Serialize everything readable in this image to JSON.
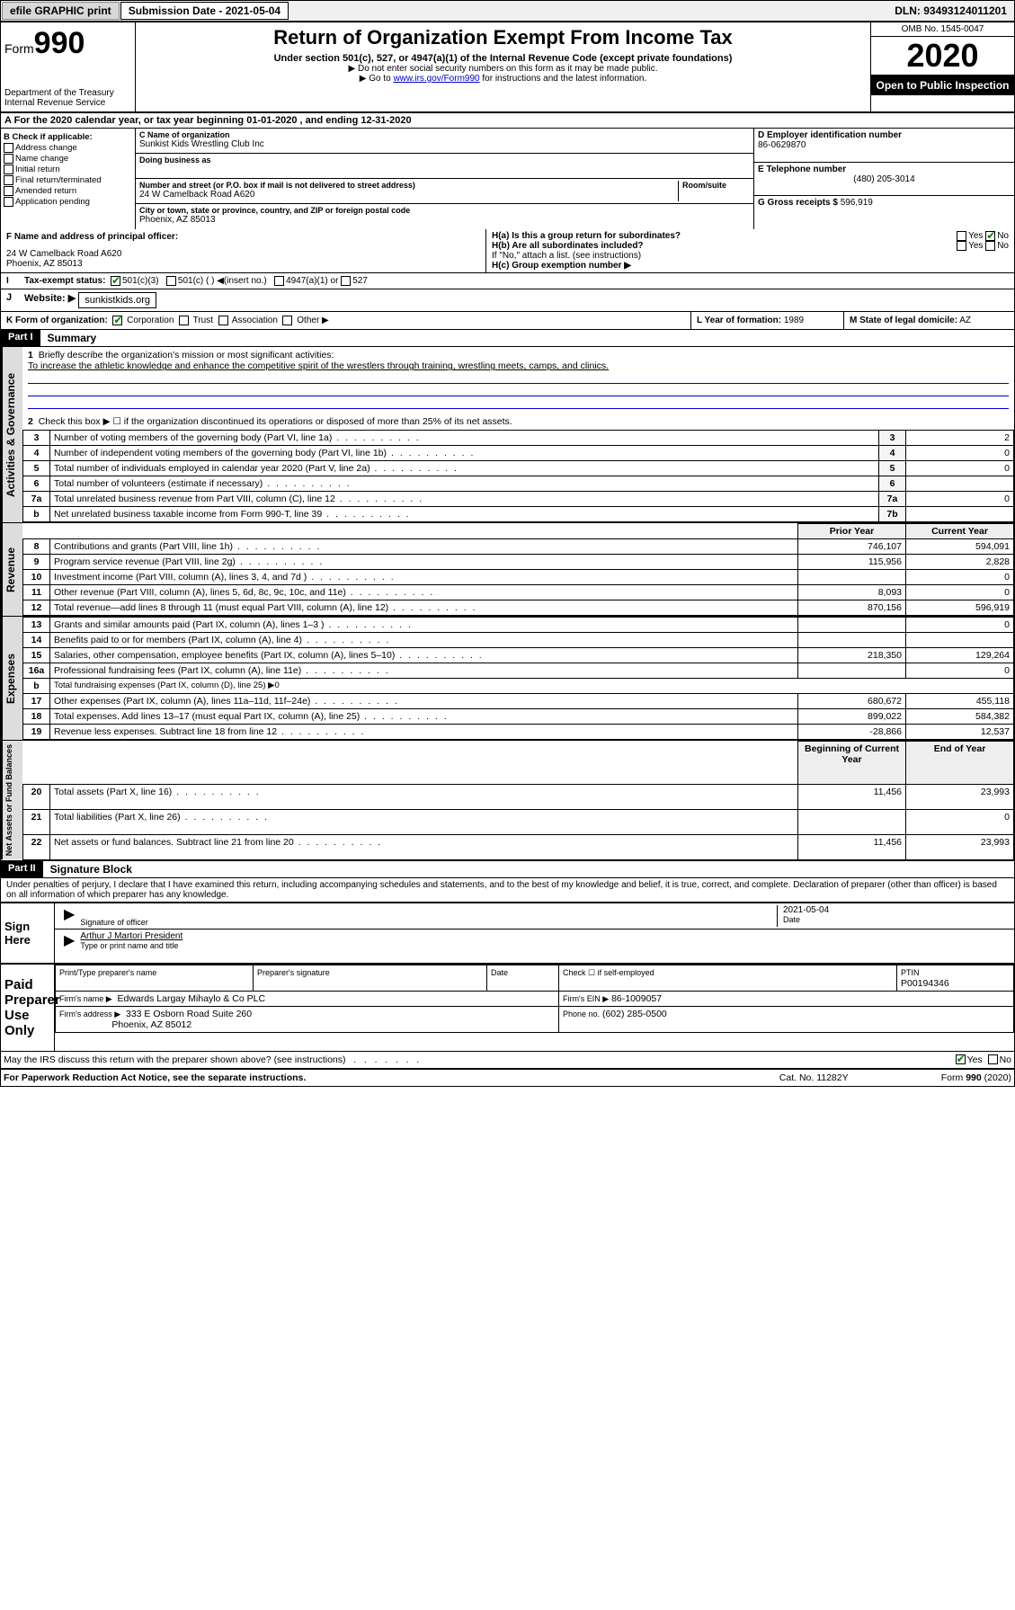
{
  "topbar": {
    "efile_btn": "efile GRAPHIC print",
    "submission_label": "Submission Date - 2021-05-04",
    "dln": "DLN: 93493124011201"
  },
  "header": {
    "form_label": "Form",
    "form_num": "990",
    "dept1": "Department of the Treasury",
    "dept2": "Internal Revenue Service",
    "title": "Return of Organization Exempt From Income Tax",
    "subtitle": "Under section 501(c), 527, or 4947(a)(1) of the Internal Revenue Code (except private foundations)",
    "note1": "▶ Do not enter social security numbers on this form as it may be made public.",
    "note2_pre": "▶ Go to ",
    "note2_link": "www.irs.gov/Form990",
    "note2_post": " for instructions and the latest information.",
    "omb": "OMB No. 1545-0047",
    "year": "2020",
    "open_pub": "Open to Public Inspection"
  },
  "section_a": "For the 2020 calendar year, or tax year beginning 01-01-2020    , and ending 12-31-2020",
  "block_b": {
    "title": "B Check if applicable:",
    "items": [
      "Address change",
      "Name change",
      "Initial return",
      "Final return/terminated",
      "Amended return",
      "Application pending"
    ]
  },
  "block_c": {
    "name_lbl": "C Name of organization",
    "name": "Sunkist Kids Wrestling Club Inc",
    "dba_lbl": "Doing business as",
    "dba": "",
    "addr_lbl": "Number and street (or P.O. box if mail is not delivered to street address)",
    "room_lbl": "Room/suite",
    "addr": "24 W Camelback Road A620",
    "city_lbl": "City or town, state or province, country, and ZIP or foreign postal code",
    "city": "Phoenix, AZ  85013"
  },
  "block_d": {
    "lbl": "D Employer identification number",
    "val": "86-0629870"
  },
  "block_e": {
    "lbl": "E Telephone number",
    "val": "(480) 205-3014"
  },
  "block_g": {
    "lbl": "G Gross receipts $",
    "val": "596,919"
  },
  "block_f": {
    "lbl": "F  Name and address of principal officer:",
    "line1": "24 W Camelback Road A620",
    "line2": "Phoenix, AZ  85013"
  },
  "block_h": {
    "ha": "H(a)  Is this a group return for subordinates?",
    "hb": "H(b)  Are all subordinates included?",
    "hb_note": "If \"No,\" attach a list. (see instructions)",
    "hc": "H(c)  Group exemption number ▶",
    "yes": "Yes",
    "no": "No"
  },
  "block_i": {
    "lbl": "Tax-exempt status:",
    "opt1": "501(c)(3)",
    "opt2": "501(c) (  ) ◀(insert no.)",
    "opt3": "4947(a)(1) or",
    "opt4": "527"
  },
  "block_j": {
    "lbl": "Website: ▶",
    "val": "sunkistkids.org"
  },
  "block_k": {
    "lbl": "K Form of organization:",
    "opts": [
      "Corporation",
      "Trust",
      "Association",
      "Other ▶"
    ]
  },
  "block_l": {
    "lbl": "L Year of formation:",
    "val": "1989"
  },
  "block_m": {
    "lbl": "M State of legal domicile:",
    "val": "AZ"
  },
  "part1": {
    "hdr": "Part I",
    "title": "Summary",
    "tab_ag": "Activities & Governance",
    "tab_rev": "Revenue",
    "tab_exp": "Expenses",
    "tab_na": "Net Assets or Fund Balances",
    "line1_lbl": "Briefly describe the organization's mission or most significant activities:",
    "line1_val": "To increase the athletic knowledge and enhance the competitive spirit of the wrestlers through training, wrestling meets, camps, and clinics.",
    "line2": "Check this box ▶ ☐  if the organization discontinued its operations or disposed of more than 25% of its net assets.",
    "rows_ag": [
      {
        "n": "3",
        "d": "Number of voting members of the governing body (Part VI, line 1a)",
        "box": "3",
        "v": "2"
      },
      {
        "n": "4",
        "d": "Number of independent voting members of the governing body (Part VI, line 1b)",
        "box": "4",
        "v": "0"
      },
      {
        "n": "5",
        "d": "Total number of individuals employed in calendar year 2020 (Part V, line 2a)",
        "box": "5",
        "v": "0"
      },
      {
        "n": "6",
        "d": "Total number of volunteers (estimate if necessary)",
        "box": "6",
        "v": ""
      },
      {
        "n": "7a",
        "d": "Total unrelated business revenue from Part VIII, column (C), line 12",
        "box": "7a",
        "v": "0"
      },
      {
        "n": "b",
        "d": "Net unrelated business taxable income from Form 990-T, line 39",
        "box": "7b",
        "v": ""
      }
    ],
    "col_prior": "Prior Year",
    "col_current": "Current Year",
    "rows_rev": [
      {
        "n": "8",
        "d": "Contributions and grants (Part VIII, line 1h)",
        "p": "746,107",
        "c": "594,091"
      },
      {
        "n": "9",
        "d": "Program service revenue (Part VIII, line 2g)",
        "p": "115,956",
        "c": "2,828"
      },
      {
        "n": "10",
        "d": "Investment income (Part VIII, column (A), lines 3, 4, and 7d )",
        "p": "",
        "c": "0"
      },
      {
        "n": "11",
        "d": "Other revenue (Part VIII, column (A), lines 5, 6d, 8c, 9c, 10c, and 11e)",
        "p": "8,093",
        "c": "0"
      },
      {
        "n": "12",
        "d": "Total revenue—add lines 8 through 11 (must equal Part VIII, column (A), line 12)",
        "p": "870,156",
        "c": "596,919"
      }
    ],
    "rows_exp": [
      {
        "n": "13",
        "d": "Grants and similar amounts paid (Part IX, column (A), lines 1–3 )",
        "p": "",
        "c": "0"
      },
      {
        "n": "14",
        "d": "Benefits paid to or for members (Part IX, column (A), line 4)",
        "p": "",
        "c": ""
      },
      {
        "n": "15",
        "d": "Salaries, other compensation, employee benefits (Part IX, column (A), lines 5–10)",
        "p": "218,350",
        "c": "129,264"
      },
      {
        "n": "16a",
        "d": "Professional fundraising fees (Part IX, column (A), line 11e)",
        "p": "",
        "c": "0"
      },
      {
        "n": "b",
        "d": "Total fundraising expenses (Part IX, column (D), line 25) ▶0",
        "p": "—",
        "c": "—"
      },
      {
        "n": "17",
        "d": "Other expenses (Part IX, column (A), lines 11a–11d, 11f–24e)",
        "p": "680,672",
        "c": "455,118"
      },
      {
        "n": "18",
        "d": "Total expenses. Add lines 13–17 (must equal Part IX, column (A), line 25)",
        "p": "899,022",
        "c": "584,382"
      },
      {
        "n": "19",
        "d": "Revenue less expenses. Subtract line 18 from line 12",
        "p": "-28,866",
        "c": "12,537"
      }
    ],
    "col_boy": "Beginning of Current Year",
    "col_eoy": "End of Year",
    "rows_na": [
      {
        "n": "20",
        "d": "Total assets (Part X, line 16)",
        "p": "11,456",
        "c": "23,993"
      },
      {
        "n": "21",
        "d": "Total liabilities (Part X, line 26)",
        "p": "",
        "c": "0"
      },
      {
        "n": "22",
        "d": "Net assets or fund balances. Subtract line 21 from line 20",
        "p": "11,456",
        "c": "23,993"
      }
    ]
  },
  "part2": {
    "hdr": "Part II",
    "title": "Signature Block",
    "perjury": "Under penalties of perjury, I declare that I have examined this return, including accompanying schedules and statements, and to the best of my knowledge and belief, it is true, correct, and complete. Declaration of preparer (other than officer) is based on all information of which preparer has any knowledge.",
    "sign_here": "Sign Here",
    "sig_officer": "Signature of officer",
    "date_lbl": "Date",
    "date_val": "2021-05-04",
    "officer_name": "Arthur J Martori  President",
    "type_name": "Type or print name and title",
    "paid_prep": "Paid Preparer Use Only",
    "pp_name_lbl": "Print/Type preparer's name",
    "pp_sig_lbl": "Preparer's signature",
    "pp_date_lbl": "Date",
    "pp_check": "Check ☐ if self-employed",
    "ptin_lbl": "PTIN",
    "ptin": "P00194346",
    "firm_name_lbl": "Firm's name    ▶",
    "firm_name": "Edwards Largay Mihaylo & Co PLC",
    "firm_ein_lbl": "Firm's EIN ▶",
    "firm_ein": "86-1009057",
    "firm_addr_lbl": "Firm's address ▶",
    "firm_addr1": "333 E Osborn Road Suite 260",
    "firm_addr2": "Phoenix, AZ  85012",
    "phone_lbl": "Phone no.",
    "phone": "(602) 285-0500"
  },
  "footer": {
    "discuss": "May the IRS discuss this return with the preparer shown above? (see instructions)",
    "yes": "Yes",
    "no": "No",
    "paperwork": "For Paperwork Reduction Act Notice, see the separate instructions.",
    "cat": "Cat. No. 11282Y",
    "formref": "Form 990 (2020)"
  }
}
